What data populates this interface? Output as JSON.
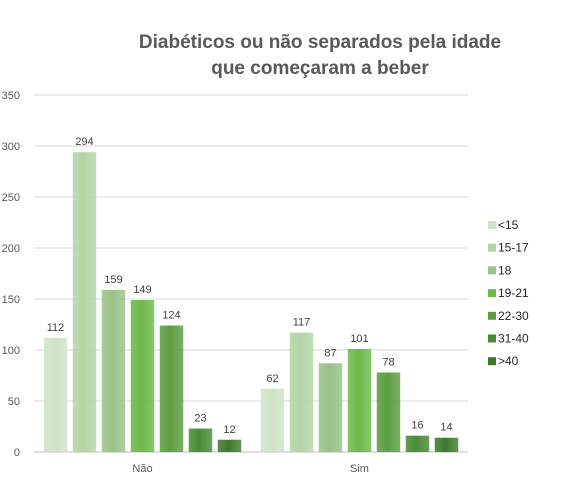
{
  "chart_data": {
    "type": "bar",
    "title_lines": [
      "Diabéticos ou não separados pela idade",
      "que começaram a beber"
    ],
    "categories": [
      "Não",
      "Sim"
    ],
    "series": [
      {
        "name": "<15",
        "values": [
          112,
          62
        ],
        "color": "#cfe3c7"
      },
      {
        "name": "15-17",
        "values": [
          294,
          117
        ],
        "color": "#b3d5a6"
      },
      {
        "name": "18",
        "values": [
          159,
          87
        ],
        "color": "#98c286"
      },
      {
        "name": "19-21",
        "values": [
          149,
          101
        ],
        "color": "#6db84a"
      },
      {
        "name": "22-30",
        "values": [
          124,
          78
        ],
        "color": "#5b9e40"
      },
      {
        "name": "31-40",
        "values": [
          23,
          16
        ],
        "color": "#4a8a36"
      },
      {
        "name": ">40",
        "values": [
          12,
          14
        ],
        "color": "#3d7a2c"
      }
    ],
    "y_ticks": [
      0,
      50,
      100,
      150,
      200,
      250,
      300,
      350
    ],
    "ylim": [
      0,
      350
    ],
    "grid": true,
    "legend_position": "right"
  }
}
